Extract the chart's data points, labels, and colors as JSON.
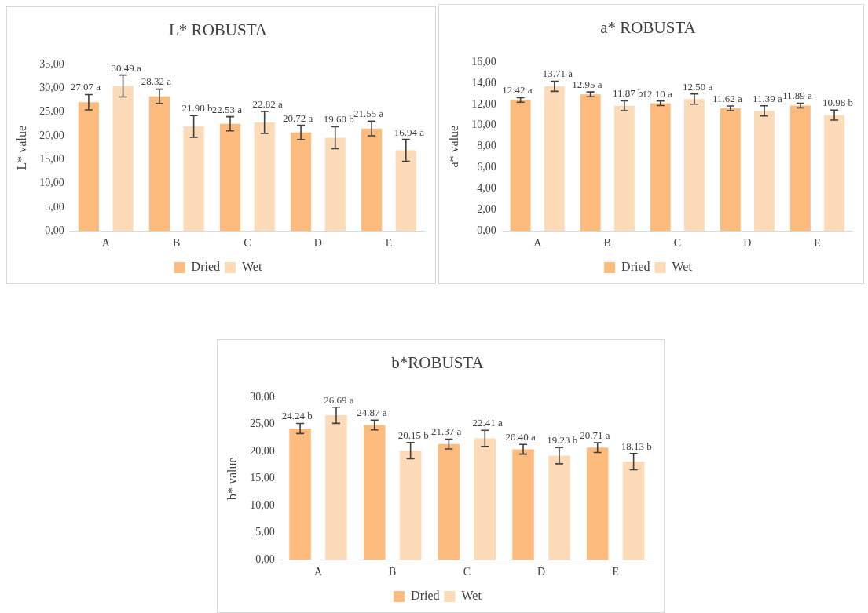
{
  "chart_data": [
    {
      "type": "bar",
      "title": "L* ROBUSTA",
      "ylabel": "L* value",
      "categories": [
        "A",
        "B",
        "C",
        "D",
        "E"
      ],
      "series": [
        {
          "name": "Dried",
          "color": "#fdbb7d",
          "values": [
            27.07,
            28.32,
            22.53,
            20.72,
            21.55
          ],
          "errors": [
            1.6,
            1.5,
            1.5,
            1.5,
            1.55
          ],
          "value_labels": [
            "27.07 a",
            "28.32 a",
            "22.53 a",
            "20.72 a",
            "21.55 a"
          ]
        },
        {
          "name": "Wet",
          "color": "#fddbb8",
          "values": [
            30.49,
            21.98,
            22.82,
            19.6,
            16.94
          ],
          "errors": [
            2.3,
            2.3,
            2.3,
            2.3,
            2.3
          ],
          "value_labels": [
            "30.49 a",
            "21.98 b",
            "22.82 a",
            "19.60 b",
            "16.94 a"
          ]
        }
      ],
      "ylim": [
        0,
        35
      ],
      "yticks": [
        {
          "value": 0,
          "label": "0,00"
        },
        {
          "value": 5,
          "label": "5,00"
        },
        {
          "value": 10,
          "label": "10,00"
        },
        {
          "value": 15,
          "label": "15,00"
        },
        {
          "value": 20,
          "label": "20,00"
        },
        {
          "value": 25,
          "label": "25,00"
        },
        {
          "value": 30,
          "label": "30,00"
        },
        {
          "value": 35,
          "label": "35,00"
        }
      ],
      "legend": "bottom"
    },
    {
      "type": "bar",
      "title": "a* ROBUSTA",
      "ylabel": "a* value",
      "categories": [
        "A",
        "B",
        "C",
        "D",
        "E"
      ],
      "series": [
        {
          "name": "Dried",
          "color": "#fdbb7d",
          "values": [
            12.42,
            12.95,
            12.1,
            11.62,
            11.89
          ],
          "errors": [
            0.22,
            0.23,
            0.22,
            0.23,
            0.22
          ],
          "value_labels": [
            "12.42 a",
            "12.95 a",
            "12.10 a",
            "11.62 a",
            "11.89 a"
          ]
        },
        {
          "name": "Wet",
          "color": "#fddbb8",
          "values": [
            13.71,
            11.87,
            12.5,
            11.39,
            10.98
          ],
          "errors": [
            0.48,
            0.47,
            0.48,
            0.48,
            0.47
          ],
          "value_labels": [
            "13.71 a",
            "11.87 b",
            "12.50 a",
            "11.39 a",
            "10.98 b"
          ]
        }
      ],
      "ylim": [
        0,
        16
      ],
      "yticks": [
        {
          "value": 0,
          "label": "0,00"
        },
        {
          "value": 2,
          "label": "2,00"
        },
        {
          "value": 4,
          "label": "4,00"
        },
        {
          "value": 6,
          "label": "6,00"
        },
        {
          "value": 8,
          "label": "8,00"
        },
        {
          "value": 10,
          "label": "10,00"
        },
        {
          "value": 12,
          "label": "12,00"
        },
        {
          "value": 14,
          "label": "14,00"
        },
        {
          "value": 16,
          "label": "16,00"
        }
      ],
      "legend": "bottom"
    },
    {
      "type": "bar",
      "title": "b*ROBUSTA",
      "ylabel": "b* value",
      "categories": [
        "A",
        "B",
        "C",
        "D",
        "E"
      ],
      "series": [
        {
          "name": "Dried",
          "color": "#fdbb7d",
          "values": [
            24.24,
            24.87,
            21.37,
            20.4,
            20.71
          ],
          "errors": [
            0.93,
            0.9,
            0.9,
            0.9,
            0.9
          ],
          "value_labels": [
            "24.24 b",
            "24.87 a",
            "21.37 a",
            "20.40 a",
            "20.71 a"
          ]
        },
        {
          "name": "Wet",
          "color": "#fddbb8",
          "values": [
            26.69,
            20.15,
            22.41,
            19.23,
            18.13
          ],
          "errors": [
            1.5,
            1.5,
            1.5,
            1.5,
            1.5
          ],
          "value_labels": [
            "26.69 a",
            "20.15 b",
            "22.41 a",
            "19.23 b",
            "18.13 b"
          ]
        }
      ],
      "ylim": [
        0,
        30
      ],
      "yticks": [
        {
          "value": 0,
          "label": "0,00"
        },
        {
          "value": 5,
          "label": "5,00"
        },
        {
          "value": 10,
          "label": "10,00"
        },
        {
          "value": 15,
          "label": "15,00"
        },
        {
          "value": 20,
          "label": "20,00"
        },
        {
          "value": 25,
          "label": "25,00"
        },
        {
          "value": 30,
          "label": "30,00"
        }
      ],
      "legend": "bottom"
    }
  ]
}
